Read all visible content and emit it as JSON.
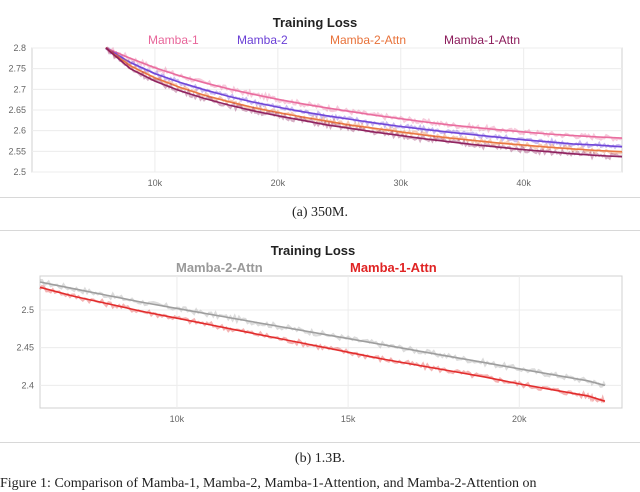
{
  "chart_data": [
    {
      "type": "line",
      "title": "Training Loss",
      "x": [
        6,
        8,
        10,
        12,
        14,
        16,
        18,
        20,
        22,
        24,
        26,
        28,
        30,
        32,
        34,
        36,
        38,
        40,
        42,
        44,
        46,
        48
      ],
      "xlim": [
        0,
        48
      ],
      "ylim": [
        2.5,
        2.8
      ],
      "xticks": [
        "10k",
        "20k",
        "30k",
        "40k"
      ],
      "xtick_values": [
        10,
        20,
        30,
        40
      ],
      "yticks": [
        "2.5",
        "2.55",
        "2.6",
        "2.65",
        "2.7",
        "2.75",
        "2.8"
      ],
      "ytick_values": [
        2.5,
        2.55,
        2.6,
        2.65,
        2.7,
        2.75,
        2.8
      ],
      "legend_position": "top",
      "series": [
        {
          "name": "Mamba-1",
          "color": "#e8669a",
          "values": [
            2.8,
            2.775,
            2.752,
            2.733,
            2.716,
            2.701,
            2.688,
            2.676,
            2.665,
            2.655,
            2.646,
            2.637,
            2.629,
            2.621,
            2.614,
            2.608,
            2.602,
            2.597,
            2.592,
            2.588,
            2.585,
            2.582
          ]
        },
        {
          "name": "Mamba-2",
          "color": "#6a3fd6",
          "values": [
            2.8,
            2.765,
            2.738,
            2.717,
            2.699,
            2.683,
            2.669,
            2.657,
            2.646,
            2.636,
            2.627,
            2.618,
            2.61,
            2.603,
            2.596,
            2.59,
            2.584,
            2.578,
            2.573,
            2.568,
            2.565,
            2.561
          ]
        },
        {
          "name": "Mamba-2-Attn",
          "color": "#e8723a",
          "values": [
            2.8,
            2.757,
            2.728,
            2.705,
            2.686,
            2.67,
            2.656,
            2.644,
            2.633,
            2.623,
            2.613,
            2.605,
            2.597,
            2.589,
            2.582,
            2.576,
            2.57,
            2.565,
            2.56,
            2.556,
            2.552,
            2.549
          ]
        },
        {
          "name": "Mamba-1-Attn",
          "color": "#8b1a5a",
          "values": [
            2.8,
            2.75,
            2.72,
            2.697,
            2.678,
            2.662,
            2.648,
            2.636,
            2.625,
            2.614,
            2.605,
            2.596,
            2.588,
            2.58,
            2.573,
            2.566,
            2.56,
            2.554,
            2.549,
            2.544,
            2.54,
            2.537
          ]
        }
      ]
    },
    {
      "type": "line",
      "title": "Training Loss",
      "x": [
        6,
        7,
        8,
        9,
        10,
        11,
        12,
        13,
        14,
        15,
        16,
        17,
        18,
        19,
        20,
        21,
        22,
        22.5
      ],
      "xlim": [
        6,
        23
      ],
      "ylim": [
        2.37,
        2.545
      ],
      "xticks": [
        "10k",
        "15k",
        "20k"
      ],
      "xtick_values": [
        10,
        15,
        20
      ],
      "yticks": [
        "2.4",
        "2.45",
        "2.5"
      ],
      "ytick_values": [
        2.4,
        2.45,
        2.5
      ],
      "legend_position": "top",
      "series": [
        {
          "name": "Mamba-2-Attn",
          "color": "#9a9a9a",
          "values": [
            2.537,
            2.528,
            2.519,
            2.51,
            2.502,
            2.494,
            2.486,
            2.478,
            2.47,
            2.462,
            2.454,
            2.446,
            2.438,
            2.43,
            2.422,
            2.414,
            2.406,
            2.4
          ]
        },
        {
          "name": "Mamba-1-Attn",
          "color": "#e02424",
          "values": [
            2.53,
            2.518,
            2.508,
            2.498,
            2.489,
            2.48,
            2.471,
            2.462,
            2.453,
            2.444,
            2.435,
            2.427,
            2.419,
            2.411,
            2.402,
            2.394,
            2.386,
            2.379
          ]
        }
      ]
    }
  ],
  "captions": {
    "a": "(a) 350M.",
    "b": "(b) 1.3B.",
    "figure": "Figure 1: Comparison of Mamba-1, Mamba-2, Mamba-1-Attention, and Mamba-2-Attention on"
  }
}
